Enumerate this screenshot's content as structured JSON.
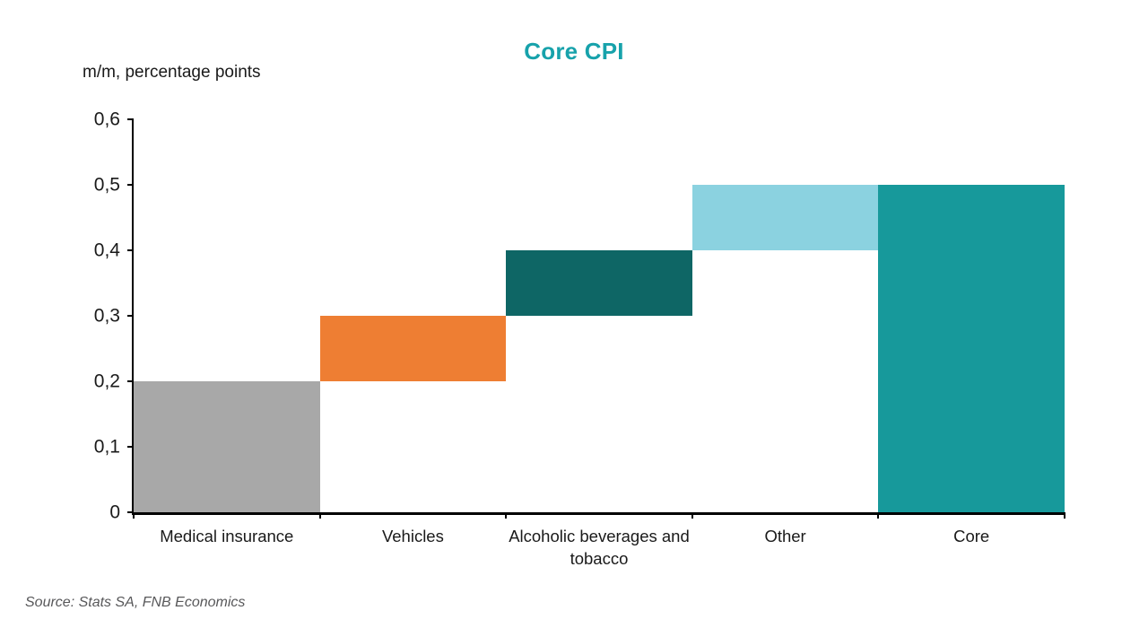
{
  "chart_data": {
    "type": "bar",
    "subtype": "waterfall",
    "title": "Core CPI",
    "axis_note": "m/m, percentage points",
    "source": "Source: Stats SA, FNB Economics",
    "categories": [
      "Medical insurance",
      "Vehicles",
      "Alcoholic beverages and tobacco",
      "Other",
      "Core"
    ],
    "bars": [
      {
        "label": "Medical insurance",
        "start": 0.0,
        "end": 0.2,
        "color": "#a8a8a8"
      },
      {
        "label": "Vehicles",
        "start": 0.2,
        "end": 0.3,
        "color": "#ee7e33"
      },
      {
        "label": "Alcoholic beverages and tobacco",
        "start": 0.3,
        "end": 0.4,
        "color": "#0e6665"
      },
      {
        "label": "Other",
        "start": 0.4,
        "end": 0.5,
        "color": "#8bd2e0"
      },
      {
        "label": "Core",
        "start": 0.0,
        "end": 0.5,
        "color": "#17999b"
      }
    ],
    "ylim": [
      0,
      0.6
    ],
    "ytick_values": [
      0,
      0.1,
      0.2,
      0.3,
      0.4,
      0.5,
      0.6
    ],
    "ytick_labels": [
      "0",
      "0,1",
      "0,2",
      "0,3",
      "0,4",
      "0,5",
      "0,6"
    ],
    "grid": false,
    "legend": "none",
    "decimal_separator": ","
  },
  "colors": {
    "title": "#17a2ab",
    "axis": "#000000",
    "text": "#1a1a1a",
    "source_text": "#58585a",
    "background": "#ffffff"
  }
}
